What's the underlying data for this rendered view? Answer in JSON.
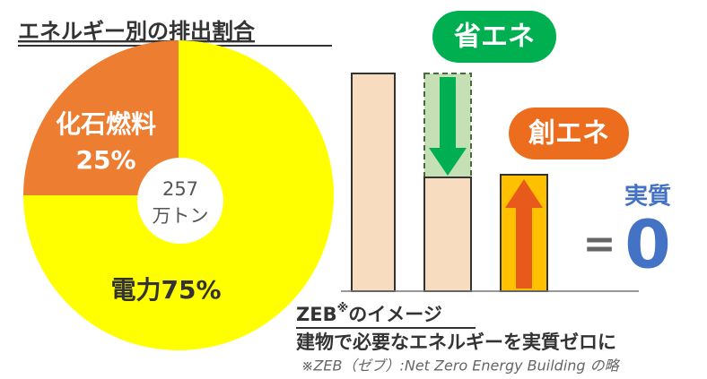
{
  "chart_data": {
    "type": "pie",
    "title": "エネルギー別の排出割合",
    "categories": [
      "電力",
      "化石燃料"
    ],
    "values": [
      75,
      25
    ],
    "value_labels": [
      "75%",
      "25%"
    ],
    "colors": [
      "#ffff00",
      "#ed7d31"
    ],
    "label_colors": [
      "#333333",
      "#ffffff"
    ],
    "total": 257,
    "total_unit": "万トン"
  },
  "diagram": {
    "save_label": "省エネ",
    "create_label": "創エネ",
    "net_label": "実質",
    "equals": "=",
    "net_value": "0",
    "caption_title": "ZEB",
    "caption_mark": "※",
    "caption_suffix": "のイメージ",
    "caption_text": "建物で必要なエネルギーを実質ゼロに",
    "footnote": "※ZEB（ゼブ）:Net Zero Energy Building の略"
  }
}
